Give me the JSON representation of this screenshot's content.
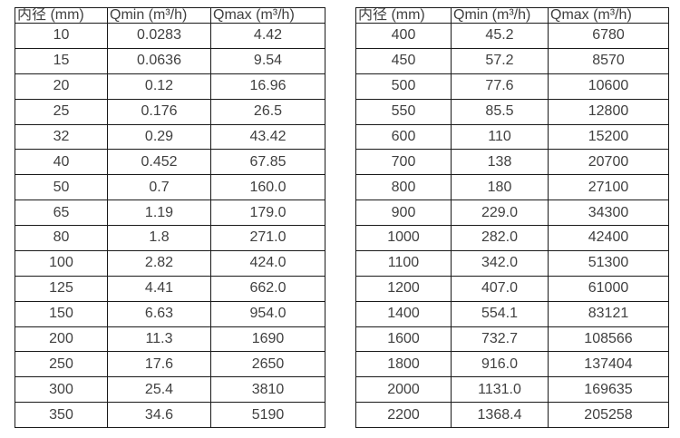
{
  "page": {
    "background_color": "#ffffff",
    "text_color": "#404040",
    "border_color": "#1a1a1a",
    "description": "Two flow-rate specification tables (pipe inner diameter vs Qmin and Qmax)"
  },
  "tables": [
    {
      "name": "flow-rate-table-small-diameters",
      "headers": [
        "内径 (mm)",
        "Qmin (m³/h)",
        "Qmax (m³/h)"
      ],
      "rows": [
        [
          "10",
          "0.0283",
          "4.42"
        ],
        [
          "15",
          "0.0636",
          "9.54"
        ],
        [
          "20",
          "0.12",
          "16.96"
        ],
        [
          "25",
          "0.176",
          "26.5"
        ],
        [
          "32",
          "0.29",
          "43.42"
        ],
        [
          "40",
          "0.452",
          "67.85"
        ],
        [
          "50",
          "0.7",
          "160.0"
        ],
        [
          "65",
          "1.19",
          "179.0"
        ],
        [
          "80",
          "1.8",
          "271.0"
        ],
        [
          "100",
          "2.82",
          "424.0"
        ],
        [
          "125",
          "4.41",
          "662.0"
        ],
        [
          "150",
          "6.63",
          "954.0"
        ],
        [
          "200",
          "11.3",
          "1690"
        ],
        [
          "250",
          "17.6",
          "2650"
        ],
        [
          "300",
          "25.4",
          "3810"
        ],
        [
          "350",
          "34.6",
          "5190"
        ]
      ]
    },
    {
      "name": "flow-rate-table-large-diameters",
      "headers": [
        "内径 (mm)",
        "Qmin (m³/h)",
        "Qmax (m³/h)"
      ],
      "rows": [
        [
          "400",
          "45.2",
          "6780"
        ],
        [
          "450",
          "57.2",
          "8570"
        ],
        [
          "500",
          "77.6",
          "10600"
        ],
        [
          "550",
          "85.5",
          "12800"
        ],
        [
          "600",
          "110",
          "15200"
        ],
        [
          "700",
          "138",
          "20700"
        ],
        [
          "800",
          "180",
          "27100"
        ],
        [
          "900",
          "229.0",
          "34300"
        ],
        [
          "1000",
          "282.0",
          "42400"
        ],
        [
          "1100",
          "342.0",
          "51300"
        ],
        [
          "1200",
          "407.0",
          "61000"
        ],
        [
          "1400",
          "554.1",
          "83121"
        ],
        [
          "1600",
          "732.7",
          "108566"
        ],
        [
          "1800",
          "916.0",
          "137404"
        ],
        [
          "2000",
          "1131.0",
          "169635"
        ],
        [
          "2200",
          "1368.4",
          "205258"
        ]
      ]
    }
  ]
}
